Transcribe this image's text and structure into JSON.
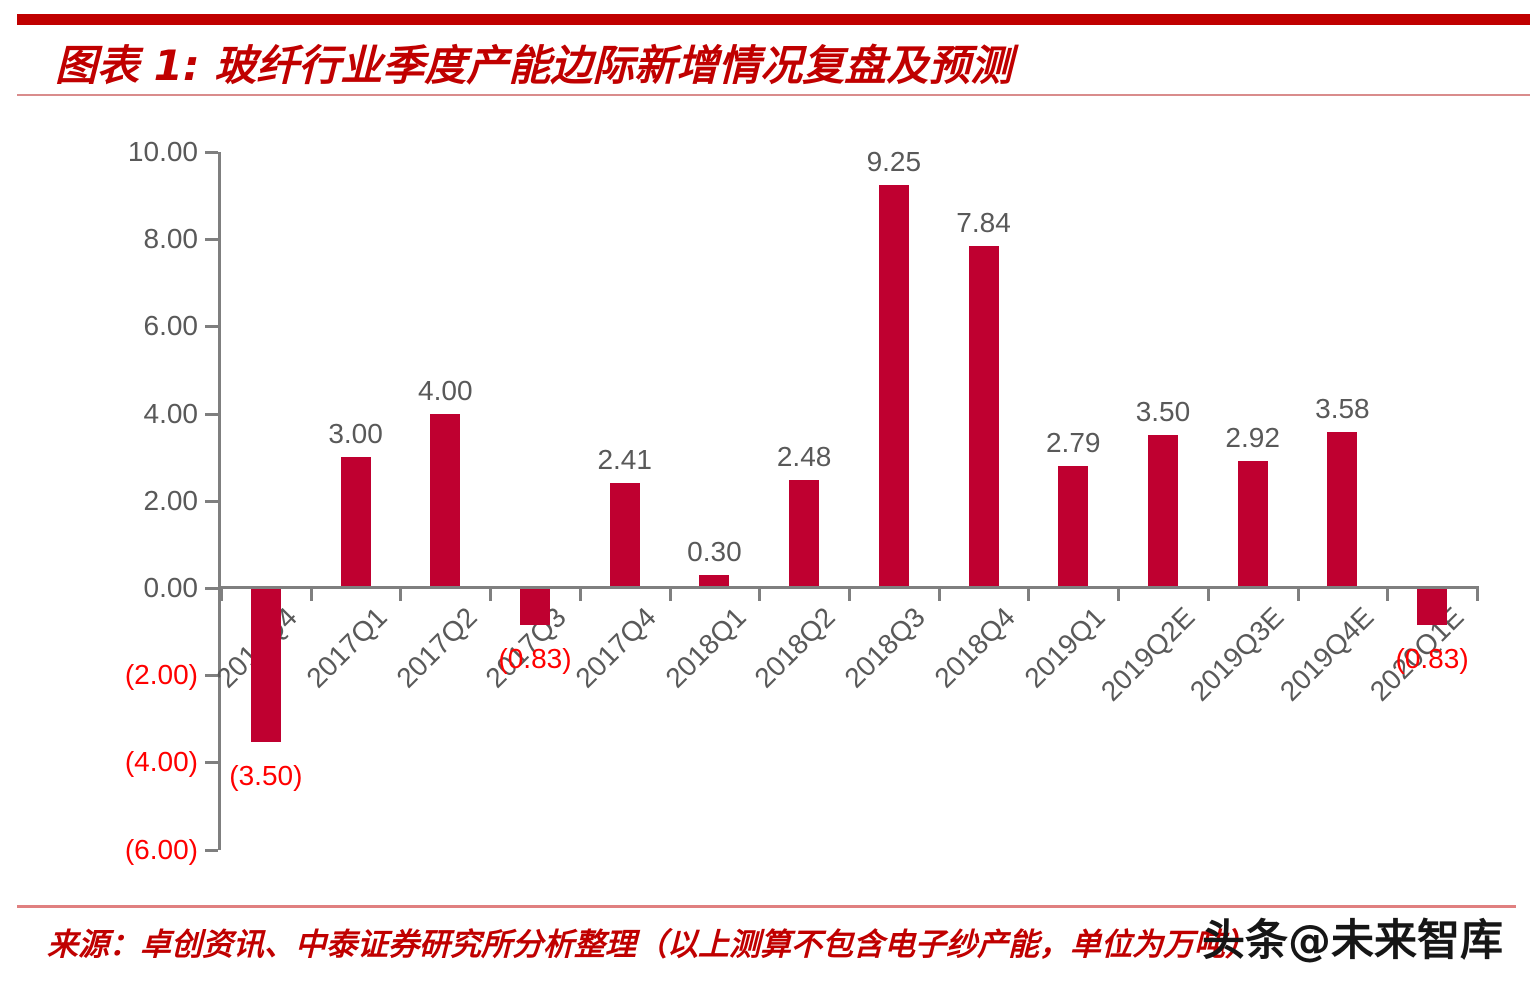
{
  "header": {
    "title": "图表 1:  玻纤行业季度产能边际新增情况复盘及预测"
  },
  "chart_data": {
    "type": "bar",
    "title": "图表 1: 玻纤行业季度产能边际新增情况复盘及预测",
    "categories": [
      "2016Q4",
      "2017Q1",
      "2017Q2",
      "2017Q3",
      "2017Q4",
      "2018Q1",
      "2018Q2",
      "2018Q3",
      "2018Q4",
      "2019Q1",
      "2019Q2E",
      "2019Q3E",
      "2019Q4E",
      "2020Q1E"
    ],
    "values": [
      -3.5,
      3.0,
      4.0,
      -0.83,
      2.41,
      0.3,
      2.48,
      9.25,
      7.84,
      2.79,
      3.5,
      2.92,
      3.58,
      -0.83
    ],
    "labels": [
      "(3.50)",
      "3.00",
      "4.00",
      "(0.83)",
      "2.41",
      "0.30",
      "2.48",
      "9.25",
      "7.84",
      "2.79",
      "3.50",
      "2.92",
      "3.58",
      "(0.83)"
    ],
    "yticks": [
      {
        "value": -6,
        "label": "(6.00)"
      },
      {
        "value": -4,
        "label": "(4.00)"
      },
      {
        "value": -2,
        "label": "(2.00)"
      },
      {
        "value": 0,
        "label": "0.00"
      },
      {
        "value": 2,
        "label": "2.00"
      },
      {
        "value": 4,
        "label": "4.00"
      },
      {
        "value": 6,
        "label": "6.00"
      },
      {
        "value": 8,
        "label": "8.00"
      },
      {
        "value": 10,
        "label": "10.00"
      }
    ],
    "ylim": [
      -6,
      10
    ],
    "xlabel": "",
    "ylabel": "",
    "grid": false,
    "legend_position": "none",
    "colors": {
      "bar": "#BF0030",
      "positive_label": "#595959",
      "negative_label": "#FF0000",
      "tick_label": "#595959",
      "axis": "#7F7F7F"
    }
  },
  "footer": {
    "source": "来源：卓创资讯、中泰证券研究所分析整理（以上测算不包含电子纱产能，单位为万吨）",
    "watermark": "头条@未来智库"
  },
  "colors": {
    "accent": "#C00000",
    "rule": "#D98C8C",
    "watermark_text": "#161616"
  }
}
